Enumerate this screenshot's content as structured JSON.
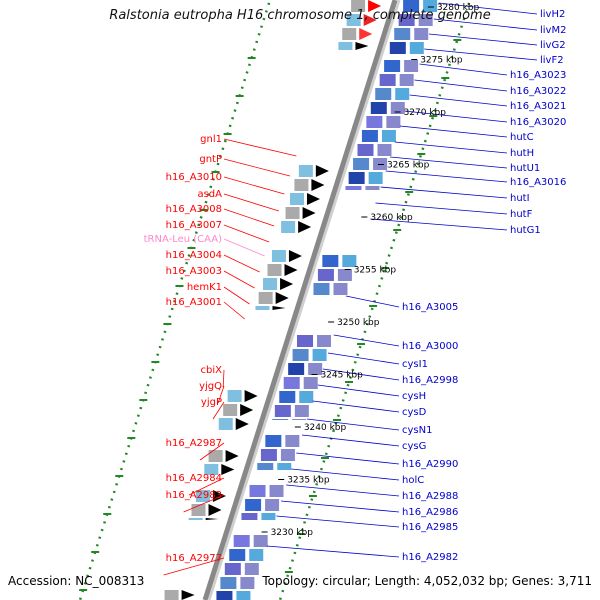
{
  "title": "Ralstonia eutropha H16 chromosome 1, complete genome",
  "footer": {
    "accession": "Accession: NC_008313",
    "topology": "Topology: circular; Length: 4,052,032 bp; Genes: 3,711"
  },
  "colors": {
    "forward_gene": "#ff0000",
    "reverse_gene": "#0000cc",
    "trna": "#ff99cc",
    "backbone": "#888888",
    "dots": "#228822"
  },
  "ticks": [
    "3280 kbp",
    "3275 kbp",
    "3270 kbp",
    "3265 kbp",
    "3260 kbp",
    "3255 kbp",
    "3250 kbp",
    "3245 kbp",
    "3240 kbp",
    "3235 kbp",
    "3230 kbp"
  ],
  "left_labels": [
    {
      "text": "gnl1",
      "color": "red"
    },
    {
      "text": "gntP",
      "color": "red"
    },
    {
      "text": "h16_A3010",
      "color": "red"
    },
    {
      "text": "asdA",
      "color": "red"
    },
    {
      "text": "h16_A3008",
      "color": "red"
    },
    {
      "text": "h16_A3007",
      "color": "red"
    },
    {
      "text": "tRNA-Leu (CAA)",
      "color": "pink"
    },
    {
      "text": "h16_A3004",
      "color": "red"
    },
    {
      "text": "h16_A3003",
      "color": "red"
    },
    {
      "text": "hemK1",
      "color": "red"
    },
    {
      "text": "h16_A3001",
      "color": "red"
    },
    {
      "text": "cbiX",
      "color": "red"
    },
    {
      "text": "yjgQ",
      "color": "red"
    },
    {
      "text": "yjgP",
      "color": "red"
    },
    {
      "text": "h16_A2987",
      "color": "red"
    },
    {
      "text": "h16_A2984",
      "color": "red"
    },
    {
      "text": "h16_A2983",
      "color": "red"
    },
    {
      "text": "h16_A2977",
      "color": "red"
    }
  ],
  "right_labels": [
    {
      "text": "livH2",
      "color": "blue"
    },
    {
      "text": "livM2",
      "color": "blue"
    },
    {
      "text": "livG2",
      "color": "blue"
    },
    {
      "text": "livF2",
      "color": "blue"
    },
    {
      "text": "h16_A3023",
      "color": "blue"
    },
    {
      "text": "h16_A3022",
      "color": "blue"
    },
    {
      "text": "h16_A3021",
      "color": "blue"
    },
    {
      "text": "h16_A3020",
      "color": "blue"
    },
    {
      "text": "hutC",
      "color": "blue"
    },
    {
      "text": "hutH",
      "color": "blue"
    },
    {
      "text": "hutU1",
      "color": "blue"
    },
    {
      "text": "h16_A3016",
      "color": "blue"
    },
    {
      "text": "hutI",
      "color": "blue"
    },
    {
      "text": "hutF",
      "color": "blue"
    },
    {
      "text": "hutG1",
      "color": "blue"
    },
    {
      "text": "h16_A3005",
      "color": "blue"
    },
    {
      "text": "h16_A3000",
      "color": "blue"
    },
    {
      "text": "cysI1",
      "color": "blue"
    },
    {
      "text": "h16_A2998",
      "color": "blue"
    },
    {
      "text": "cysH",
      "color": "blue"
    },
    {
      "text": "cysD",
      "color": "blue"
    },
    {
      "text": "cysN1",
      "color": "blue"
    },
    {
      "text": "cysG",
      "color": "blue"
    },
    {
      "text": "h16_A2990",
      "color": "blue"
    },
    {
      "text": "holC",
      "color": "blue"
    },
    {
      "text": "h16_A2988",
      "color": "blue"
    },
    {
      "text": "h16_A2986",
      "color": "blue"
    },
    {
      "text": "h16_A2985",
      "color": "blue"
    },
    {
      "text": "h16_A2982",
      "color": "blue"
    }
  ]
}
